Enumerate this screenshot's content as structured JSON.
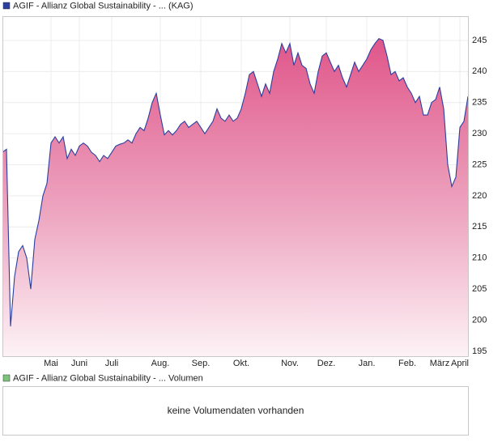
{
  "chart_data": [
    {
      "type": "area",
      "categories": [
        null,
        null,
        null,
        null,
        null,
        null,
        null,
        null,
        null,
        null,
        null,
        null,
        "Mai",
        null,
        null,
        null,
        null,
        null,
        null,
        "Juni",
        null,
        null,
        null,
        null,
        null,
        null,
        null,
        "Juli",
        null,
        null,
        null,
        null,
        null,
        null,
        null,
        null,
        null,
        null,
        null,
        "Aug.",
        null,
        null,
        null,
        null,
        null,
        null,
        null,
        null,
        null,
        "Sep.",
        null,
        null,
        null,
        null,
        null,
        null,
        null,
        null,
        null,
        "Okt.",
        null,
        null,
        null,
        null,
        null,
        null,
        null,
        null,
        null,
        null,
        null,
        "Nov.",
        null,
        null,
        null,
        null,
        null,
        null,
        null,
        null,
        "Dez.",
        null,
        null,
        null,
        null,
        null,
        null,
        null,
        null,
        null,
        "Jan.",
        null,
        null,
        null,
        null,
        null,
        null,
        null,
        null,
        null,
        "Feb.",
        null,
        null,
        null,
        null,
        null,
        null,
        null,
        "März",
        null,
        null,
        null,
        null,
        "April",
        null,
        null
      ],
      "series": [
        {
          "name": "AGIF - Allianz Global Sustainability - ... (KAG)",
          "color": "#2a3f9e",
          "values": [
            227,
            227.5,
            199,
            207,
            211,
            212,
            210,
            205,
            213,
            216,
            220,
            222,
            228.5,
            229.5,
            228.5,
            229.5,
            226,
            227.5,
            226.5,
            228,
            228.5,
            228,
            227,
            226.5,
            225.5,
            226.5,
            226,
            227,
            228,
            228.3,
            228.5,
            229,
            228.5,
            230,
            231,
            230.5,
            232.5,
            235,
            236.5,
            233,
            229.8,
            230.5,
            229.8,
            230.5,
            231.5,
            232,
            231,
            231.5,
            232,
            231,
            230,
            231,
            232,
            234,
            232.5,
            232,
            233,
            232,
            232.5,
            234,
            236.5,
            239.5,
            240,
            238,
            236,
            238,
            236.5,
            240,
            242,
            244.5,
            243,
            244.5,
            241,
            243,
            241,
            240.5,
            238,
            236.5,
            240,
            242.5,
            243,
            241.5,
            240,
            241,
            239,
            237.5,
            239.5,
            241.5,
            240,
            241,
            242,
            243.5,
            244.5,
            245.3,
            245,
            242.5,
            239.5,
            240,
            238.5,
            239,
            237.5,
            236.5,
            235,
            236,
            233,
            233,
            235,
            235.5,
            237.5,
            234,
            225,
            221.5,
            223,
            231,
            232,
            236
          ]
        }
      ],
      "ylim": [
        194.2,
        248.9
      ],
      "yticks": [
        195,
        200,
        205,
        210,
        215,
        220,
        225,
        230,
        235,
        240,
        245
      ],
      "grid": true
    },
    {
      "type": "empty",
      "series": [
        {
          "name": "AGIF - Allianz Global Sustainability - ... Volumen",
          "color": "#7cc47c"
        }
      ],
      "message": "keine Volumendaten vorhanden"
    }
  ]
}
